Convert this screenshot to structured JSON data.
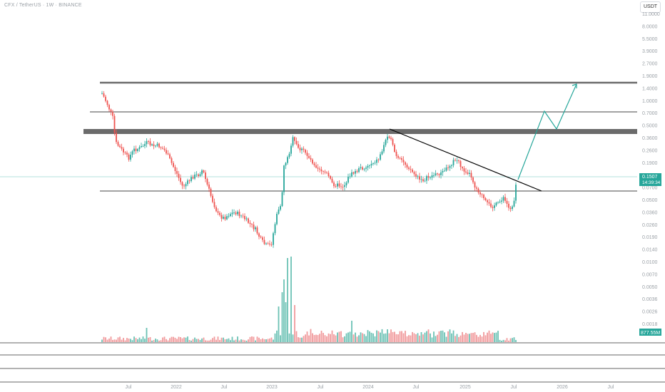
{
  "header": {
    "symbol_line": "CFX / TetherUS · 1W · BINANCE",
    "currency_button": "USDT"
  },
  "price_badge": {
    "price": "0.1507",
    "countdown": "14:39:34"
  },
  "volume_badge": {
    "value": "877.55M"
  },
  "colors": {
    "up": "#26a69a",
    "down": "#ef5350",
    "up_volume": "#6cc2b5",
    "down_volume": "#f19a9c",
    "badge": "#26a69a",
    "trendline": "#000000",
    "zone": "#6b6b6b",
    "projection": "#26a69a"
  },
  "chart_data": {
    "type": "candlestick",
    "title": "",
    "ylabel": "",
    "xlabel": "",
    "y_scale": "log",
    "y_ticks": [
      "11.0000",
      "8.0000",
      "5.5000",
      "3.9000",
      "2.7000",
      "1.9000",
      "1.4000",
      "1.0000",
      "0.7000",
      "0.5000",
      "0.3600",
      "0.2600",
      "0.1900",
      "0.1000",
      "0.0700",
      "0.0500",
      "0.0360",
      "0.0260",
      "0.0190",
      "0.0140",
      "0.0100",
      "0.0070",
      "0.0050",
      "0.0036",
      "0.0026",
      "0.0018"
    ],
    "x_ticks": [
      "Jul",
      "2022",
      "Jul",
      "2023",
      "Jul",
      "2024",
      "Jul",
      "2025",
      "Jul",
      "2026",
      "Jul"
    ],
    "last_price": 0.1507,
    "annotations": {
      "horizontal_lines": [
        1.9,
        0.88,
        0.1
      ],
      "zone": [
        0.51,
        0.565
      ],
      "trendline": {
        "from": [
          "2024-03",
          0.54
        ],
        "to": [
          "2025-08",
          0.1
        ]
      },
      "projection_path": [
        0.16,
        0.88,
        0.52,
        1.9
      ]
    }
  }
}
